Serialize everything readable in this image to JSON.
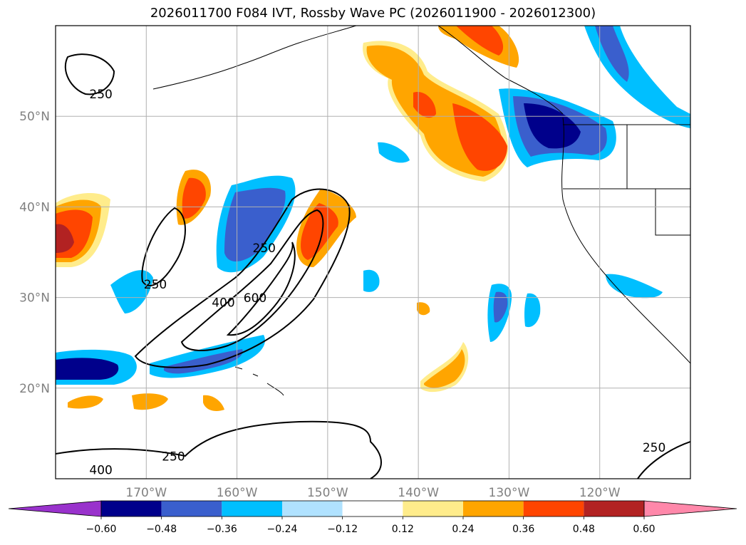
{
  "title": "2026011700 F084 IVT, Rossby Wave PC (2026011900 - 2026012300)",
  "map": {
    "lon_range": [
      -180,
      -110
    ],
    "lat_range": [
      10,
      60
    ],
    "lat_ticks": [
      {
        "value": 50,
        "label": "50°N"
      },
      {
        "value": 40,
        "label": "40°N"
      },
      {
        "value": 30,
        "label": "30°N"
      },
      {
        "value": 20,
        "label": "20°N"
      }
    ],
    "lon_ticks": [
      {
        "value": -170,
        "label": "170°W"
      },
      {
        "value": -160,
        "label": "160°W"
      },
      {
        "value": -150,
        "label": "150°W"
      },
      {
        "value": -140,
        "label": "140°W"
      },
      {
        "value": -130,
        "label": "130°W"
      },
      {
        "value": -120,
        "label": "120°W"
      }
    ],
    "grid": true,
    "contour_labels": [
      {
        "text": "250",
        "lon": -175,
        "lat": 52
      },
      {
        "text": "250",
        "lon": -169,
        "lat": 31
      },
      {
        "text": "250",
        "lon": -157,
        "lat": 35
      },
      {
        "text": "400",
        "lon": -161.5,
        "lat": 29
      },
      {
        "text": "600",
        "lon": -158,
        "lat": 29.5
      },
      {
        "text": "250",
        "lon": -167,
        "lat": 12
      },
      {
        "text": "400",
        "lon": -175,
        "lat": 10.5
      },
      {
        "text": "250",
        "lon": -114,
        "lat": 13
      }
    ]
  },
  "colorbar": {
    "colors": [
      "#9932CC",
      "#00008B",
      "#3A5FCD",
      "#00BFFF",
      "#B0E2FF",
      "#FFFFFF",
      "#FFEC8B",
      "#FFA500",
      "#FF4500",
      "#B22222",
      "#FF88AA"
    ],
    "tick_labels": [
      "−0.60",
      "−0.48",
      "−0.36",
      "−0.24",
      "−0.12",
      "0.12",
      "0.24",
      "0.36",
      "0.48",
      "0.60"
    ]
  }
}
